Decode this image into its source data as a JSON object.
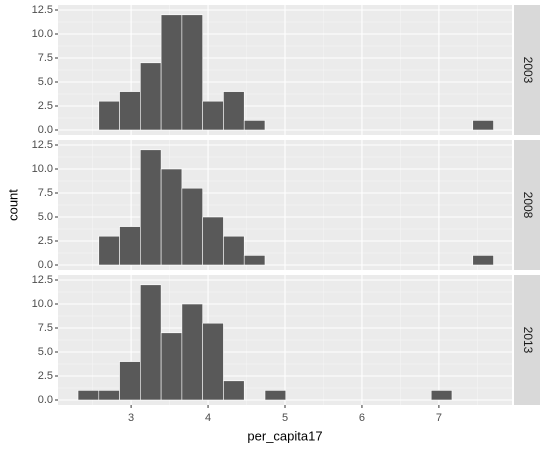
{
  "chart_data": {
    "type": "histogram",
    "x_label": "per_capita17",
    "y_label": "count",
    "bins": [
      2.31,
      2.58,
      2.85,
      3.12,
      3.39,
      3.66,
      3.93,
      4.2,
      4.47,
      4.74,
      5.01,
      5.28,
      5.55,
      5.82,
      6.09,
      6.36,
      6.63,
      6.9,
      7.17,
      7.44,
      7.71
    ],
    "series": [
      {
        "name": "2003",
        "color": "#595959",
        "values": [
          0,
          3,
          4,
          7,
          12,
          12,
          3,
          4,
          1,
          0,
          0,
          0,
          0,
          0,
          0,
          0,
          0,
          0,
          0,
          1
        ]
      },
      {
        "name": "2008",
        "color": "#595959",
        "values": [
          0,
          3,
          4,
          12,
          10,
          8,
          5,
          3,
          1,
          0,
          0,
          0,
          0,
          0,
          0,
          0,
          0,
          0,
          0,
          1
        ]
      },
      {
        "name": "2013",
        "color": "#595959",
        "values": [
          1,
          1,
          4,
          12,
          7,
          10,
          8,
          2,
          0,
          1,
          0,
          0,
          0,
          0,
          0,
          0,
          0,
          1,
          0,
          0
        ]
      }
    ],
    "xlim": [
      2.05,
      7.95
    ],
    "xticks": [
      3,
      4,
      5,
      6,
      7
    ],
    "ylim": [
      -0.52,
      13.02
    ],
    "yticks": [
      {
        "value": 0,
        "label": "0.0"
      },
      2.5,
      {
        "value": 5,
        "label": "5.0"
      },
      7.5,
      {
        "value": 10,
        "label": "10.0"
      },
      12.5
    ],
    "grid": true
  }
}
